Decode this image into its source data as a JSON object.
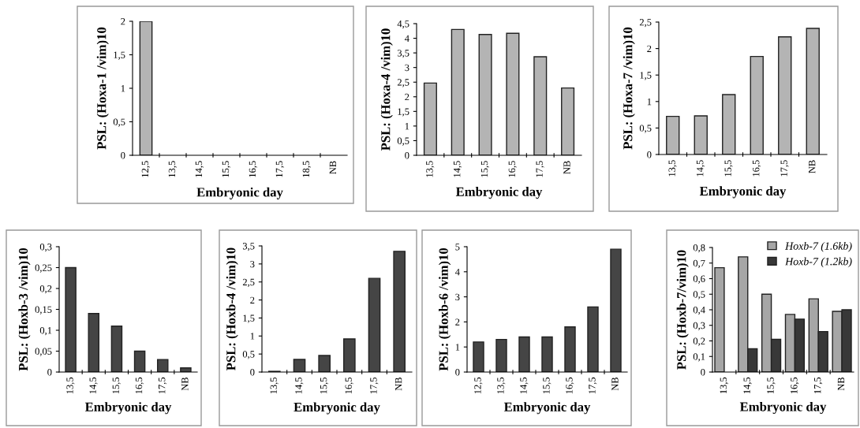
{
  "chart_data": [
    {
      "type": "bar",
      "ylabel": "PSL: (Hoxa-1 /vim)10",
      "xlabel": "Embryonic day",
      "categories": [
        "12,5",
        "13,5",
        "14,5",
        "15,5",
        "16,5",
        "17,5",
        "18,5",
        "NB"
      ],
      "values": [
        2,
        0,
        0,
        0,
        0,
        0,
        0,
        0
      ],
      "color": "#b4b4b4",
      "ylim": [
        0,
        2
      ],
      "yticks": [
        0,
        {
          "value": 0.5,
          "label": "0,5"
        },
        1,
        {
          "value": 1.5,
          "label": "1,5"
        },
        2
      ]
    },
    {
      "type": "bar",
      "ylabel": "PSL: (Hoxa-4 /vim)10",
      "xlabel": "Embryonic day",
      "categories": [
        "13,5",
        "14,5",
        "15,5",
        "16,5",
        "17,5",
        "NB"
      ],
      "values": [
        2.47,
        4.3,
        4.13,
        4.17,
        3.37,
        2.3
      ],
      "color": "#b4b4b4",
      "ylim": [
        0,
        4.5
      ],
      "yticks": [
        0,
        {
          "value": 0.5,
          "label": "0,5"
        },
        1,
        {
          "value": 1.5,
          "label": "1,5"
        },
        2,
        {
          "value": 2.5,
          "label": "2,5"
        },
        3,
        {
          "value": 3.5,
          "label": "3,5"
        },
        4,
        {
          "value": 4.5,
          "label": "4,5"
        }
      ]
    },
    {
      "type": "bar",
      "ylabel": "PSL: (Hoxa-7 /vim)10",
      "xlabel": "Embryonic day",
      "categories": [
        "13,5",
        "14,5",
        "15,5",
        "16,5",
        "17,5",
        "NB"
      ],
      "values": [
        0.72,
        0.73,
        1.13,
        1.85,
        2.22,
        2.38
      ],
      "color": "#b4b4b4",
      "ylim": [
        0,
        2.5
      ],
      "yticks": [
        0,
        {
          "value": 0.5,
          "label": "0,5"
        },
        1,
        {
          "value": 1.5,
          "label": "1,5"
        },
        2,
        {
          "value": 2.5,
          "label": "2,5"
        }
      ]
    },
    {
      "type": "bar",
      "ylabel": "PSL: (Hoxb-3 /vim)10",
      "xlabel": "Embryonic day",
      "categories": [
        "13,5",
        "14,5",
        "15,5",
        "16,5",
        "17,5",
        "NB"
      ],
      "values": [
        0.25,
        0.14,
        0.11,
        0.05,
        0.03,
        0.01
      ],
      "color": "#454545",
      "ylim": [
        0,
        0.3
      ],
      "yticks": [
        0,
        {
          "value": 0.05,
          "label": "0,05"
        },
        {
          "value": 0.1,
          "label": "0,1"
        },
        {
          "value": 0.15,
          "label": "0,15"
        },
        {
          "value": 0.2,
          "label": "0,2"
        },
        {
          "value": 0.25,
          "label": "0,25"
        },
        {
          "value": 0.3,
          "label": "0,3"
        }
      ]
    },
    {
      "type": "bar",
      "ylabel": "PSL: (Hoxb-4 /vim)10",
      "xlabel": "Embryonic day",
      "categories": [
        "13,5",
        "14,5",
        "15,5",
        "16,5",
        "17,5",
        "NB"
      ],
      "values": [
        0.02,
        0.35,
        0.46,
        0.92,
        2.6,
        3.35
      ],
      "color": "#454545",
      "ylim": [
        0,
        3.5
      ],
      "yticks": [
        0,
        {
          "value": 0.5,
          "label": "0,5"
        },
        1,
        {
          "value": 1.5,
          "label": "1,5"
        },
        2,
        {
          "value": 2.5,
          "label": "2,5"
        },
        3,
        {
          "value": 3.5,
          "label": "3,5"
        }
      ]
    },
    {
      "type": "bar",
      "ylabel": "PSL: (Hoxb-6 /vim)10",
      "xlabel": "Embryonic day",
      "categories": [
        "12,5",
        "13,5",
        "14,5",
        "15,5",
        "16,5",
        "17,5",
        "NB"
      ],
      "values": [
        1.2,
        1.3,
        1.4,
        1.4,
        1.8,
        2.6,
        4.9
      ],
      "color": "#454545",
      "ylim": [
        0,
        5
      ],
      "yticks": [
        0,
        1,
        2,
        3,
        4,
        5
      ]
    },
    {
      "type": "bar",
      "ylabel": "PSL: (Hoxb-7/vim)10",
      "xlabel": "Embryonic day",
      "categories": [
        "13,5",
        "14,5",
        "15,5",
        "16,5",
        "17,5",
        "NB"
      ],
      "legend": "top right",
      "ylim": [
        0,
        0.8
      ],
      "yticks": [
        0,
        {
          "value": 0.1,
          "label": "0,1"
        },
        {
          "value": 0.2,
          "label": "0,2"
        },
        {
          "value": 0.3,
          "label": "0,3"
        },
        {
          "value": 0.4,
          "label": "0,4"
        },
        {
          "value": 0.5,
          "label": "0,5"
        },
        {
          "value": 0.6,
          "label": "0,6"
        },
        {
          "value": 0.7,
          "label": "0,7"
        },
        {
          "value": 0.8,
          "label": "0,8"
        }
      ],
      "series": [
        {
          "name": "Hoxb-7 (1.6kb)",
          "color": "#a6a6a6",
          "values": [
            0.67,
            0.74,
            0.5,
            0.37,
            0.47,
            0.39
          ]
        },
        {
          "name": "Hoxb-7 (1.2kb)",
          "color": "#383838",
          "values": [
            null,
            0.15,
            0.21,
            0.34,
            0.26,
            0.4
          ]
        }
      ]
    }
  ]
}
